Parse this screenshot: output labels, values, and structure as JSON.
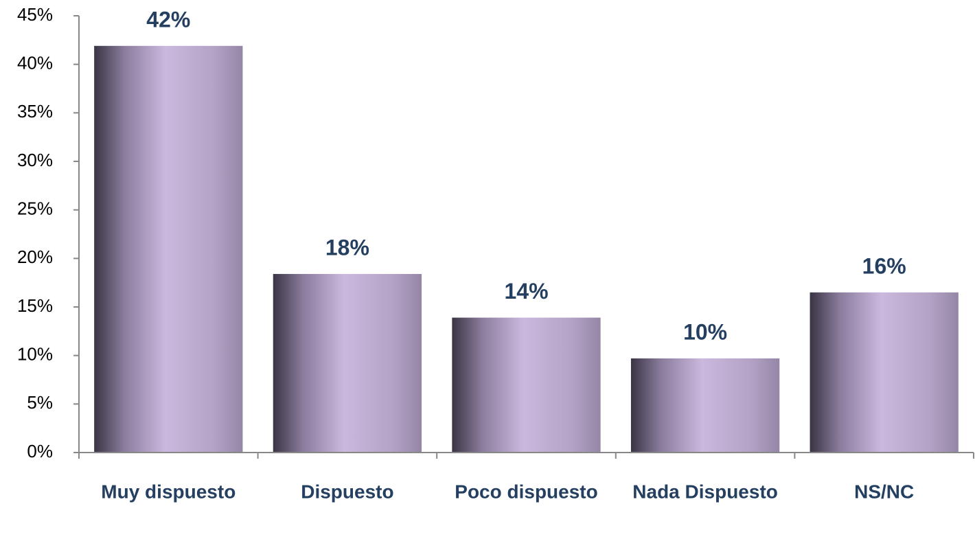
{
  "chart_data": {
    "type": "bar",
    "categories": [
      "Muy dispuesto",
      "Dispuesto",
      "Poco dispuesto",
      "Nada Dispuesto",
      "NS/NC"
    ],
    "values": [
      41.9,
      18.4,
      13.9,
      9.7,
      16.5
    ],
    "value_labels": [
      "42%",
      "18%",
      "14%",
      "10%",
      "16%"
    ],
    "color": "#cbb8de",
    "ylim": [
      0,
      45
    ],
    "yticks": [
      {
        "value": 0,
        "label": "0%"
      },
      {
        "value": 5,
        "label": "5%"
      },
      {
        "value": 10,
        "label": "10%"
      },
      {
        "value": 15,
        "label": "15%"
      },
      {
        "value": 20,
        "label": "20%"
      },
      {
        "value": 25,
        "label": "25%"
      },
      {
        "value": 30,
        "label": "30%"
      },
      {
        "value": 35,
        "label": "35%"
      },
      {
        "value": 40,
        "label": "40%"
      },
      {
        "value": 45,
        "label": "45%"
      }
    ],
    "grid": false
  }
}
